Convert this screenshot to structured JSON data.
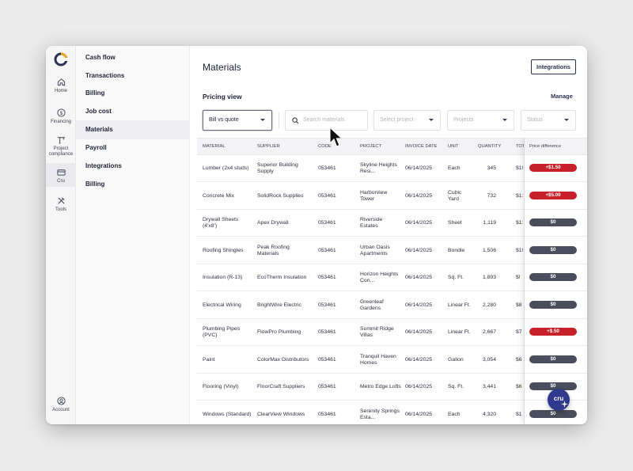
{
  "rail": {
    "items": [
      {
        "label": "Home",
        "icon": "home-icon"
      },
      {
        "label": "Financing",
        "icon": "dollar-icon"
      },
      {
        "label": "Project compliance",
        "icon": "crane-icon"
      },
      {
        "label": "Cru",
        "icon": "card-icon"
      },
      {
        "label": "Tools",
        "icon": "tools-icon"
      }
    ],
    "account": {
      "label": "Account",
      "icon": "user-icon"
    }
  },
  "menu": {
    "items": [
      {
        "label": "Cash flow"
      },
      {
        "label": "Transactions"
      },
      {
        "label": "Billing"
      },
      {
        "label": "Job cost"
      },
      {
        "label": "Materials"
      },
      {
        "label": "Payroll"
      },
      {
        "label": "Integrations"
      },
      {
        "label": "Billing"
      }
    ]
  },
  "header": {
    "title": "Materials",
    "integrations_label": "Integrations"
  },
  "pricing": {
    "label": "Pricing view",
    "manage_label": "Manage"
  },
  "filters": {
    "view_select": "Bill vs quote",
    "search_placeholder": "Search materials",
    "project_placeholder": "Select project",
    "projects_placeholder": "Projects",
    "status_placeholder": "Status"
  },
  "table": {
    "columns": [
      "Material",
      "Supplier",
      "Code",
      "Project",
      "Invoice date",
      "Unit",
      "Quantity",
      "Tota",
      "Price difference"
    ],
    "rows": [
      {
        "material": "Lumber (2x4 studs)",
        "supplier": "Superior Building Supply",
        "code": "053461",
        "project": "Skyline Heights Resi...",
        "date": "06/14/2025",
        "unit": "Each",
        "qty": "345",
        "total": "$1!",
        "diff": "+$1.50",
        "diff_kind": "pos"
      },
      {
        "material": "Concrete Mix",
        "supplier": "SolidRock Supplies",
        "code": "053461",
        "project": "Harborview Tower",
        "date": "06/14/2025",
        "unit": "Cubic Yard",
        "qty": "732",
        "total": "$1:",
        "diff": "+$5.00",
        "diff_kind": "pos"
      },
      {
        "material": "Drywall Sheets (4'x8')",
        "supplier": "Apex Drywall",
        "code": "053461",
        "project": "Riverside Estates",
        "date": "06/14/2025",
        "unit": "Sheet",
        "qty": "1,119",
        "total": "$1:",
        "diff": "$0",
        "diff_kind": "zero"
      },
      {
        "material": "Roofing Shingles",
        "supplier": "Peak Roofing Materials",
        "code": "053461",
        "project": "Urban Oasis Apartments",
        "date": "06/14/2025",
        "unit": "Bundle",
        "qty": "1,506",
        "total": "$1!",
        "diff": "$0",
        "diff_kind": "zero"
      },
      {
        "material": "Insulation (R-13)",
        "supplier": "EcoTherm Insulation",
        "code": "053461",
        "project": "Horizon Heights Con...",
        "date": "06/14/2025",
        "unit": "Sq. Ft.",
        "qty": "1,893",
        "total": "$!",
        "diff": "$0",
        "diff_kind": "zero"
      },
      {
        "material": "Electrical Wiring",
        "supplier": "BrightWire Electric",
        "code": "053461",
        "project": "Greenleaf Gardens",
        "date": "06/14/2025",
        "unit": "Linear Ft.",
        "qty": "2,280",
        "total": "$8",
        "diff": "$0",
        "diff_kind": "zero"
      },
      {
        "material": "Plumbing Pipes (PVC)",
        "supplier": "FlowPro Plumbing",
        "code": "053461",
        "project": "Summit Ridge Villas",
        "date": "06/14/2025",
        "unit": "Linear Ft.",
        "qty": "2,667",
        "total": "$7",
        "diff": "+$.50",
        "diff_kind": "pos"
      },
      {
        "material": "Paint",
        "supplier": "ColorMax Distributors",
        "code": "053461",
        "project": "Tranquil Haven Homes",
        "date": "06/14/2025",
        "unit": "Gallon",
        "qty": "3,054",
        "total": "$6",
        "diff": "$0",
        "diff_kind": "zero"
      },
      {
        "material": "Flooring (Vinyl)",
        "supplier": "FloorCraft Suppliers",
        "code": "053461",
        "project": "Metro Edge Lofts",
        "date": "06/14/2025",
        "unit": "Sq. Ft.",
        "qty": "3,441",
        "total": "$6",
        "diff": "$0",
        "diff_kind": "zero"
      },
      {
        "material": "Windows (Standard)",
        "supplier": "ClearView Windows",
        "code": "053461",
        "project": "Serenity Springs Esta...",
        "date": "06/14/2025",
        "unit": "Each",
        "qty": "4,320",
        "total": "$1",
        "diff": "$0",
        "diff_kind": "zero"
      }
    ]
  },
  "chat": {
    "label": "cru"
  },
  "colors": {
    "accent": "#2b3252",
    "positive_diff": "#c8202a",
    "zero_diff": "#4a4d5c",
    "chat": "#2f3a8f"
  }
}
